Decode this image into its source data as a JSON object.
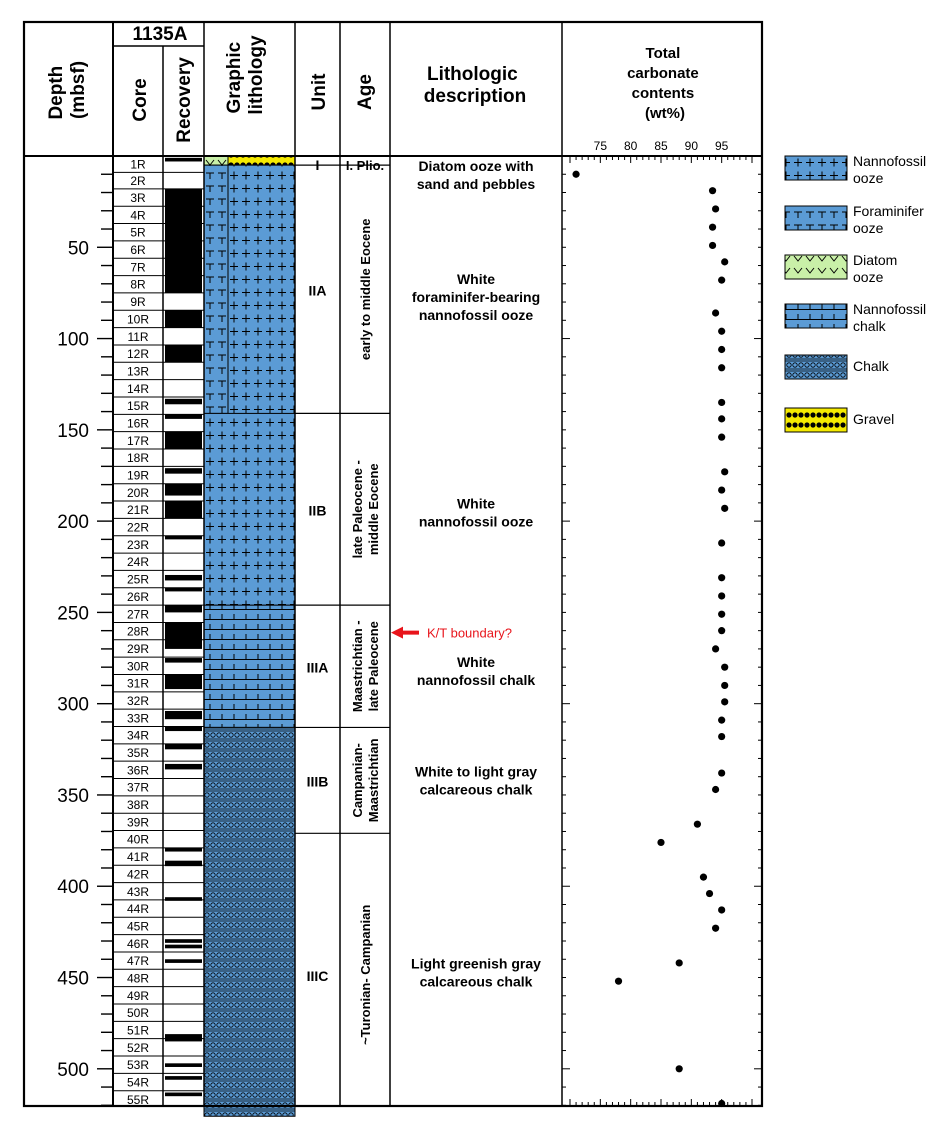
{
  "header": {
    "site": "1135A",
    "depth_line1": "Depth",
    "depth_line2": "(mbsf)",
    "core": "Core",
    "recovery": "Recovery",
    "graphic_line1": "Graphic",
    "graphic_line2": "lithology",
    "unit": "Unit",
    "age": "Age",
    "litho_line1": "Lithologic",
    "litho_line2": "description",
    "carb_line1": "Total",
    "carb_line2": "carbonate",
    "carb_line3": "contents",
    "carb_line4": "(wt%)"
  },
  "depth_ticks": [
    "50",
    "100",
    "150",
    "200",
    "250",
    "300",
    "350",
    "400",
    "450",
    "500"
  ],
  "cores": [
    {
      "label": "1R",
      "top": 0,
      "bottom": 9
    },
    {
      "label": "2R",
      "top": 9,
      "bottom": 18
    },
    {
      "label": "3R",
      "top": 18,
      "bottom": 27.5
    },
    {
      "label": "4R",
      "top": 27.5,
      "bottom": 37
    },
    {
      "label": "5R",
      "top": 37,
      "bottom": 46.5
    },
    {
      "label": "6R",
      "top": 46.5,
      "bottom": 56
    },
    {
      "label": "7R",
      "top": 56,
      "bottom": 65.5
    },
    {
      "label": "8R",
      "top": 65.5,
      "bottom": 75
    },
    {
      "label": "9R",
      "top": 75,
      "bottom": 84.5
    },
    {
      "label": "10R",
      "top": 84.5,
      "bottom": 94
    },
    {
      "label": "11R",
      "top": 94,
      "bottom": 103.5
    },
    {
      "label": "12R",
      "top": 103.5,
      "bottom": 113
    },
    {
      "label": "13R",
      "top": 113,
      "bottom": 122.5
    },
    {
      "label": "14R",
      "top": 122.5,
      "bottom": 132
    },
    {
      "label": "15R",
      "top": 132,
      "bottom": 141.5
    },
    {
      "label": "16R",
      "top": 141.5,
      "bottom": 151
    },
    {
      "label": "17R",
      "top": 151,
      "bottom": 160.5
    },
    {
      "label": "18R",
      "top": 160.5,
      "bottom": 170
    },
    {
      "label": "19R",
      "top": 170,
      "bottom": 179.5
    },
    {
      "label": "20R",
      "top": 179.5,
      "bottom": 189
    },
    {
      "label": "21R",
      "top": 189,
      "bottom": 198.5
    },
    {
      "label": "22R",
      "top": 198.5,
      "bottom": 208
    },
    {
      "label": "23R",
      "top": 208,
      "bottom": 217.5
    },
    {
      "label": "24R",
      "top": 217.5,
      "bottom": 227
    },
    {
      "label": "25R",
      "top": 227,
      "bottom": 236.5
    },
    {
      "label": "26R",
      "top": 236.5,
      "bottom": 246
    },
    {
      "label": "27R",
      "top": 246,
      "bottom": 255.5
    },
    {
      "label": "28R",
      "top": 255.5,
      "bottom": 265
    },
    {
      "label": "29R",
      "top": 265,
      "bottom": 274.5
    },
    {
      "label": "30R",
      "top": 274.5,
      "bottom": 284
    },
    {
      "label": "31R",
      "top": 284,
      "bottom": 293.5
    },
    {
      "label": "32R",
      "top": 293.5,
      "bottom": 303
    },
    {
      "label": "33R",
      "top": 303,
      "bottom": 312.5
    },
    {
      "label": "34R",
      "top": 312.5,
      "bottom": 322
    },
    {
      "label": "35R",
      "top": 322,
      "bottom": 331.5
    },
    {
      "label": "36R",
      "top": 331.5,
      "bottom": 341
    },
    {
      "label": "37R",
      "top": 341,
      "bottom": 350.5
    },
    {
      "label": "38R",
      "top": 350.5,
      "bottom": 360
    },
    {
      "label": "39R",
      "top": 360,
      "bottom": 369.5
    },
    {
      "label": "40R",
      "top": 369.5,
      "bottom": 379
    },
    {
      "label": "41R",
      "top": 379,
      "bottom": 388.5
    },
    {
      "label": "42R",
      "top": 388.5,
      "bottom": 398
    },
    {
      "label": "43R",
      "top": 398,
      "bottom": 407.5
    },
    {
      "label": "44R",
      "top": 407.5,
      "bottom": 417
    },
    {
      "label": "45R",
      "top": 417,
      "bottom": 426.5
    },
    {
      "label": "46R",
      "top": 426.5,
      "bottom": 436
    },
    {
      "label": "47R",
      "top": 436,
      "bottom": 445.5
    },
    {
      "label": "48R",
      "top": 445.5,
      "bottom": 455
    },
    {
      "label": "49R",
      "top": 455,
      "bottom": 464.5
    },
    {
      "label": "50R",
      "top": 464.5,
      "bottom": 474
    },
    {
      "label": "51R",
      "top": 474,
      "bottom": 483.5
    },
    {
      "label": "52R",
      "top": 483.5,
      "bottom": 493
    },
    {
      "label": "53R",
      "top": 493,
      "bottom": 502.5
    },
    {
      "label": "54R",
      "top": 502.5,
      "bottom": 512
    },
    {
      "label": "55R",
      "top": 512,
      "bottom": 521.5
    }
  ],
  "recovery_black": [
    [
      1,
      3
    ],
    [
      18,
      75
    ],
    [
      84.5,
      94
    ],
    [
      103.5,
      113
    ],
    [
      133,
      136
    ],
    [
      141.5,
      144
    ],
    [
      151,
      160.5
    ],
    [
      171,
      174
    ],
    [
      179.5,
      186
    ],
    [
      189,
      198.5
    ],
    [
      208,
      210
    ],
    [
      229.5,
      232.5
    ],
    [
      236.5,
      238.5
    ],
    [
      246,
      250
    ],
    [
      255.5,
      270
    ],
    [
      275,
      277.5
    ],
    [
      284,
      292
    ],
    [
      304,
      308.5
    ],
    [
      312.5,
      315
    ],
    [
      322,
      325
    ],
    [
      333,
      336
    ],
    [
      379,
      381
    ],
    [
      386,
      389
    ],
    [
      406,
      408
    ],
    [
      429,
      431
    ],
    [
      432,
      434
    ],
    [
      440,
      442
    ],
    [
      481,
      485
    ],
    [
      497,
      499
    ],
    [
      504,
      506
    ],
    [
      513,
      515
    ]
  ],
  "lithology": [
    {
      "pattern": "diatom",
      "label": "Diatom ooze",
      "top": 0,
      "bottom": 5
    },
    {
      "pattern": "gravel",
      "label": "Gravel",
      "top": 0,
      "bottom": 5
    },
    {
      "pattern": "foram",
      "label": "Foraminifer ooze",
      "top": 5,
      "bottom": 141
    },
    {
      "pattern": "nanno",
      "label": "Nannofossil ooze",
      "top": 5,
      "bottom": 246
    },
    {
      "pattern": "nchalk",
      "label": "Nannofossil chalk",
      "top": 246,
      "bottom": 313
    },
    {
      "pattern": "chalk",
      "label": "Chalk",
      "top": 313,
      "bottom": 526
    }
  ],
  "units": [
    {
      "name": "I",
      "age": "I. Plio.",
      "age_rotated": false,
      "top": 0,
      "bottom": 5,
      "description": [
        "Diatom ooze with",
        "sand and pebbles"
      ]
    },
    {
      "name": "IIA",
      "age": "early to middle Eocene",
      "age_rotated": true,
      "top": 5,
      "bottom": 141,
      "description": [
        "White",
        "foraminifer-bearing",
        "nannofossil ooze"
      ]
    },
    {
      "name": "IIB",
      "age": "late Paleocene -|middle Eocene",
      "age_rotated": true,
      "top": 141,
      "bottom": 246,
      "description": [
        "White",
        "nannofossil ooze"
      ]
    },
    {
      "name": "IIIA",
      "age": "Maastrichtian -|late Paleocene",
      "age_rotated": true,
      "top": 246,
      "bottom": 313,
      "description": [
        "White",
        "nannofossil chalk"
      ]
    },
    {
      "name": "IIIB",
      "age": "Campanian-|Maastrichtian",
      "age_rotated": true,
      "top": 313,
      "bottom": 371,
      "description": [
        "White to light gray",
        "calcareous chalk"
      ]
    },
    {
      "name": "IIIC",
      "age": "~Turonian- Campanian",
      "age_rotated": true,
      "top": 371,
      "bottom": 526,
      "description": [
        "Light greenish gray",
        "calcareous chalk"
      ]
    }
  ],
  "annotation": {
    "text": "K/T boundary?",
    "depth": 260,
    "color": "#e8141b"
  },
  "legend": [
    {
      "pattern": "nanno",
      "line1": "Nannofossil",
      "line2": "ooze"
    },
    {
      "pattern": "foram",
      "line1": "Foraminifer",
      "line2": "ooze"
    },
    {
      "pattern": "diatom",
      "line1": "Diatom",
      "line2": "ooze"
    },
    {
      "pattern": "nchalk",
      "line1": "Nannofossil",
      "line2": "chalk"
    },
    {
      "pattern": "chalk",
      "line1": "Chalk",
      "line2": ""
    },
    {
      "pattern": "gravel",
      "line1": "Gravel",
      "line2": ""
    }
  ],
  "colors": {
    "blue": "#5b9bd5",
    "green": "#c9f0a8",
    "yellow": "#f5ea00",
    "red": "#e8141b",
    "black": "#000000"
  },
  "chart_data": {
    "type": "scatter",
    "title": "Total carbonate contents (wt%)",
    "xlabel": "Total carbonate contents (wt%)",
    "ylabel": "Depth (mbsf)",
    "x_ticks": [
      75,
      80,
      85,
      90,
      95
    ],
    "xlim": [
      70,
      100
    ],
    "ylim": [
      0,
      526
    ],
    "y_inverted": true,
    "series": [
      {
        "points": [
          [
            71,
            10
          ],
          [
            93.5,
            19
          ],
          [
            94,
            29
          ],
          [
            93.5,
            39
          ],
          [
            93.5,
            49
          ],
          [
            95.5,
            58
          ],
          [
            95,
            68
          ],
          [
            94,
            86
          ],
          [
            95,
            96
          ],
          [
            95,
            106
          ],
          [
            95,
            116
          ],
          [
            95,
            135
          ],
          [
            95,
            144
          ],
          [
            95,
            154
          ],
          [
            95.5,
            173
          ],
          [
            95,
            183
          ],
          [
            95.5,
            193
          ],
          [
            95,
            212
          ],
          [
            95,
            231
          ],
          [
            95,
            241
          ],
          [
            95,
            251
          ],
          [
            95,
            260
          ],
          [
            94,
            270
          ],
          [
            95.5,
            280
          ],
          [
            95.5,
            290
          ],
          [
            95.5,
            299
          ],
          [
            95,
            309
          ],
          [
            95,
            318
          ],
          [
            95,
            338
          ],
          [
            94,
            347
          ],
          [
            91,
            366
          ],
          [
            85,
            376
          ],
          [
            92,
            395
          ],
          [
            93,
            404
          ],
          [
            95,
            413
          ],
          [
            94,
            423
          ],
          [
            88,
            442
          ],
          [
            78,
            452
          ],
          [
            88,
            500
          ],
          [
            95,
            519
          ]
        ]
      }
    ]
  }
}
